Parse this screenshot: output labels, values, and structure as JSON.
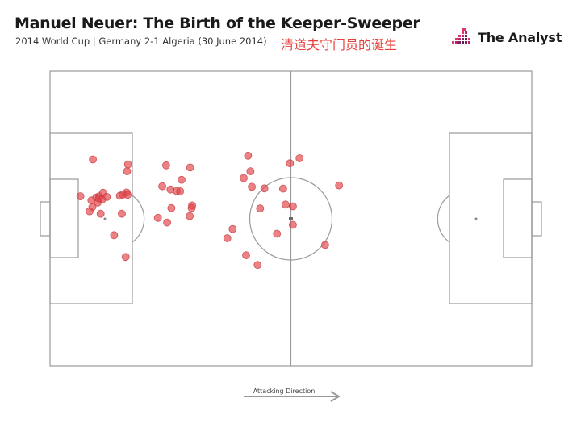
{
  "header": {
    "title": "Manuel Neuer: The Birth of the Keeper-Sweeper",
    "subtitle": "2014 World Cup | Germany 2-1 Algeria (30 June 2014)",
    "annotation_cn": "清道夫守门员的诞生"
  },
  "brand": {
    "name": "The Analyst",
    "logo_icon": "bar-mosaic-logo-icon",
    "colors": [
      "#e0356a",
      "#b4236b",
      "#7a1f5c",
      "#5b1f4f"
    ]
  },
  "chart_data": {
    "type": "scatter",
    "title": "Manuel Neuer: The Birth of the Keeper-Sweeper",
    "subtitle": "2014 World Cup | Germany 2-1 Algeria (30 June 2014)",
    "xlabel": "",
    "ylabel": "",
    "xlim": [
      0,
      100
    ],
    "ylim": [
      0,
      100
    ],
    "grid": false,
    "marker_color": "#e0474c",
    "marker_edge_color": "#c7373c",
    "direction_label": "Attacking Direction",
    "series": [
      {
        "x": [
          41.1,
          51.8,
          49.8,
          8.9,
          16.2,
          24.1,
          29.1,
          16.0,
          41.6,
          40.2,
          27.3,
          60.0,
          41.9,
          48.4,
          44.5,
          23.3,
          25.0,
          26.3,
          27.0,
          15.9,
          11.0,
          15.1,
          16.1,
          14.5,
          6.3,
          10.2,
          11.8,
          9.6,
          10.2,
          10.8,
          8.6,
          9.9,
          8.8,
          29.5,
          25.2,
          29.4,
          48.9,
          50.4,
          43.6,
          8.2,
          10.5,
          14.9,
          24.3,
          22.4,
          29.0,
          50.4,
          37.9,
          47.1,
          13.3,
          36.8,
          57.1,
          40.7,
          15.7,
          43.1
        ],
        "y": [
          71.3,
          70.4,
          68.7,
          70.0,
          68.3,
          68.0,
          67.3,
          66.0,
          66.0,
          63.7,
          63.1,
          61.2,
          60.7,
          60.1,
          60.2,
          60.9,
          59.8,
          59.3,
          59.2,
          58.8,
          58.7,
          58.1,
          58.0,
          57.7,
          57.5,
          57.5,
          57.3,
          57.1,
          56.7,
          56.4,
          56.1,
          55.4,
          53.9,
          54.4,
          53.5,
          53.5,
          54.7,
          54.1,
          53.4,
          52.4,
          51.6,
          51.6,
          48.6,
          50.2,
          50.8,
          47.8,
          46.4,
          44.8,
          44.3,
          43.3,
          41.0,
          37.5,
          36.9,
          34.2
        ]
      }
    ]
  }
}
